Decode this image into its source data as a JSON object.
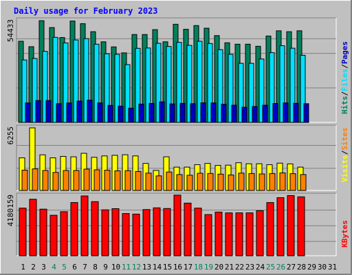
{
  "chart_data": {
    "type": "bar",
    "title": "Daily usage for February 2023",
    "colors": {
      "hits": "#00805c",
      "files": "#00e0ff",
      "pages": "#0000c0",
      "visits": "#ffff00",
      "sites": "#ff8000",
      "kbytes": "#ff0000",
      "plot_bg": "#c0c0c0",
      "frame_bg": "#c0c0c0",
      "title": "#0000ff",
      "weekday_text": "#000000",
      "weekend_text": "#00805c"
    },
    "x_axis": {
      "labels": [
        "1",
        "2",
        "3",
        "4",
        "5",
        "6",
        "7",
        "8",
        "9",
        "10",
        "11",
        "12",
        "13",
        "14",
        "15",
        "16",
        "17",
        "18",
        "19",
        "20",
        "21",
        "22",
        "23",
        "24",
        "25",
        "26",
        "27",
        "28",
        "29",
        "30",
        "31"
      ],
      "weekend_days": [
        4,
        5,
        11,
        12,
        18,
        19,
        25,
        26
      ]
    },
    "panels": [
      {
        "id": "top",
        "max_label": "54433",
        "ymax": 54433,
        "legend": [
          {
            "text": "Hits",
            "color": "#00805c"
          },
          {
            "text": "/",
            "color": "#000000"
          },
          {
            "text": "Files",
            "color": "#00e0ff"
          },
          {
            "text": "/",
            "color": "#000000"
          },
          {
            "text": "Pages",
            "color": "#0000c0"
          }
        ],
        "series": [
          {
            "name": "Hits",
            "color": "#00805c",
            "values": [
              43400,
              40500,
              54400,
              50700,
              45400,
              54200,
              52800,
              48500,
              43100,
              40400,
              37200,
              47000,
              47000,
              49600,
              43100,
              52500,
              49800,
              51800,
              50400,
              46400,
              42600,
              41800,
              41800,
              40700,
              46200,
              49000,
              48500,
              49000
            ]
          },
          {
            "name": "Files",
            "color": "#00e0ff",
            "values": [
              33400,
              34200,
              38000,
              45500,
              42500,
              44100,
              44800,
              41800,
              36700,
              36400,
              30900,
              39600,
              39800,
              42300,
              40600,
              42800,
              41200,
              43400,
              42200,
              38900,
              36400,
              31600,
              31600,
              33900,
              37300,
              41000,
              39700,
              35900
            ]
          },
          {
            "name": "Pages",
            "color": "#0000c0",
            "values": [
              10400,
              11700,
              11700,
              10000,
              10400,
              11400,
              11900,
              10400,
              9100,
              8700,
              7600,
              9800,
              10100,
              11000,
              9900,
              10200,
              10000,
              10500,
              10400,
              9700,
              9200,
              8100,
              8500,
              9200,
              10100,
              10400,
              10200,
              10000
            ]
          }
        ]
      },
      {
        "id": "middle",
        "max_label": "6255",
        "ymax": 6255,
        "legend": [
          {
            "text": "Visits",
            "color": "#ffff00"
          },
          {
            "text": "/",
            "color": "#000000"
          },
          {
            "text": "Sites",
            "color": "#ff8000"
          }
        ],
        "series": [
          {
            "name": "Visits",
            "color": "#ffff00",
            "values": [
              3260,
              6255,
              3560,
              3260,
              3400,
              3360,
              3710,
              3310,
              3450,
              3510,
              3570,
              3450,
              2700,
              2000,
              3360,
              2330,
              2330,
              2570,
              2700,
              2500,
              2530,
              2770,
              2670,
              2670,
              2570,
              2730,
              2650,
              2330
            ]
          },
          {
            "name": "Sites",
            "color": "#ff8000",
            "values": [
              2030,
              2160,
              1990,
              1800,
              1990,
              1990,
              2130,
              2060,
              2020,
              1960,
              1980,
              1900,
              1730,
              1460,
              1840,
              1590,
              1520,
              1720,
              1700,
              1630,
              1550,
              1730,
              1690,
              1650,
              1690,
              1750,
              1680,
              1590
            ]
          }
        ]
      },
      {
        "id": "bottom",
        "max_label": "4180159",
        "ymax": 4180159,
        "legend": [
          {
            "text": "KBytes",
            "color": "#ff0000"
          }
        ],
        "series": [
          {
            "name": "KBytes",
            "color": "#ff0000",
            "values": [
              3330000,
              3950000,
              3260000,
              2830000,
              3080000,
              3720000,
              4180000,
              3780000,
              3210000,
              3290000,
              2950000,
              2910000,
              3230000,
              3350000,
              3300000,
              4240000,
              3680000,
              3330000,
              2880000,
              3050000,
              3000000,
              3000000,
              3000000,
              3150000,
              3720000,
              4060000,
              4210000,
              4120000
            ]
          }
        ]
      }
    ]
  }
}
